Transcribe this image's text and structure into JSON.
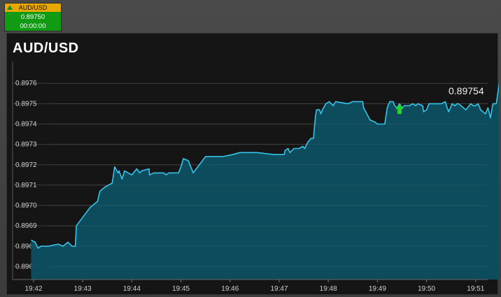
{
  "ticker": {
    "symbol": "AUD/USD",
    "price": "0.89750",
    "timer": "00:00:00",
    "direction_icon": "triangle-up-icon",
    "colors": {
      "header": "#e8a800",
      "body": "#129a12"
    }
  },
  "panel": {
    "title": "AUD/USD"
  },
  "chart_data": {
    "type": "area",
    "title": "AUD/USD",
    "xlabel": "",
    "ylabel": "",
    "x_ticks": [
      "19:42",
      "19:43",
      "19:44",
      "19:45",
      "19:46",
      "19:47",
      "19:48",
      "19:49",
      "19:50",
      "19:51"
    ],
    "y_ticks": [
      "0.8967",
      "0.8968",
      "0.8969",
      "0.8970",
      "0.8971",
      "0.8972",
      "0.8973",
      "0.8974",
      "0.8975",
      "0.8976"
    ],
    "xlim": [
      0,
      9.55
    ],
    "ylim": [
      0.89665,
      0.89769
    ],
    "grid": true,
    "last_value": "0.89754",
    "marker": {
      "type": "up-arrow",
      "x": 7.45,
      "y": 0.89747,
      "color": "#2bd12b"
    },
    "colors": {
      "line": "#35c4ea",
      "fill": "#0d4f61"
    },
    "series": [
      {
        "points": [
          [
            -0.05,
            0.89683
          ],
          [
            0.03,
            0.89682
          ],
          [
            0.09,
            0.89679
          ],
          [
            0.15,
            0.8968
          ],
          [
            0.3,
            0.8968
          ],
          [
            0.5,
            0.89681
          ],
          [
            0.6,
            0.8968
          ],
          [
            0.7,
            0.89682
          ],
          [
            0.78,
            0.8968
          ],
          [
            0.85,
            0.8968
          ],
          [
            0.87,
            0.8969
          ],
          [
            1.15,
            0.89699
          ],
          [
            1.3,
            0.89702
          ],
          [
            1.35,
            0.89707
          ],
          [
            1.45,
            0.89709
          ],
          [
            1.6,
            0.89711
          ],
          [
            1.62,
            0.89714
          ],
          [
            1.65,
            0.89719
          ],
          [
            1.72,
            0.89716
          ],
          [
            1.74,
            0.89717
          ],
          [
            1.8,
            0.89713
          ],
          [
            1.85,
            0.89717
          ],
          [
            2.0,
            0.89715
          ],
          [
            2.1,
            0.89718
          ],
          [
            2.16,
            0.89716
          ],
          [
            2.2,
            0.89717
          ],
          [
            2.35,
            0.89718
          ],
          [
            2.36,
            0.89715
          ],
          [
            2.45,
            0.89716
          ],
          [
            2.5,
            0.89716
          ],
          [
            2.55,
            0.89716
          ],
          [
            2.6,
            0.89716
          ],
          [
            2.65,
            0.89716
          ],
          [
            2.7,
            0.89715
          ],
          [
            2.75,
            0.89716
          ],
          [
            2.8,
            0.89716
          ],
          [
            2.85,
            0.89716
          ],
          [
            2.9,
            0.89716
          ],
          [
            2.95,
            0.89716
          ],
          [
            3.0,
            0.89719
          ],
          [
            3.05,
            0.89723
          ],
          [
            3.15,
            0.89722
          ],
          [
            3.2,
            0.89719
          ],
          [
            3.25,
            0.89716
          ],
          [
            3.5,
            0.89724
          ],
          [
            3.75,
            0.89724
          ],
          [
            3.85,
            0.89724
          ],
          [
            4.05,
            0.89725
          ],
          [
            4.2,
            0.89726
          ],
          [
            4.55,
            0.89726
          ],
          [
            4.9,
            0.89725
          ],
          [
            5.1,
            0.89725
          ],
          [
            5.12,
            0.89727
          ],
          [
            5.18,
            0.89728
          ],
          [
            5.22,
            0.89726
          ],
          [
            5.3,
            0.89728
          ],
          [
            5.4,
            0.89728
          ],
          [
            5.48,
            0.89729
          ],
          [
            5.52,
            0.89728
          ],
          [
            5.58,
            0.89731
          ],
          [
            5.65,
            0.89733
          ],
          [
            5.7,
            0.89733
          ],
          [
            5.72,
            0.89739
          ],
          [
            5.74,
            0.89744
          ],
          [
            5.76,
            0.89747
          ],
          [
            5.82,
            0.89747
          ],
          [
            5.85,
            0.89745
          ],
          [
            5.88,
            0.89747
          ],
          [
            5.95,
            0.8975
          ],
          [
            6.02,
            0.89751
          ],
          [
            6.1,
            0.89749
          ],
          [
            6.15,
            0.89751
          ],
          [
            6.4,
            0.8975
          ],
          [
            6.5,
            0.89751
          ],
          [
            6.58,
            0.89751
          ],
          [
            6.7,
            0.89751
          ],
          [
            6.72,
            0.89748
          ],
          [
            6.85,
            0.89742
          ],
          [
            6.95,
            0.89741
          ],
          [
            7.0,
            0.8974
          ],
          [
            7.15,
            0.8974
          ],
          [
            7.2,
            0.89748
          ],
          [
            7.25,
            0.89751
          ],
          [
            7.32,
            0.89751
          ],
          [
            7.35,
            0.89749
          ],
          [
            7.4,
            0.89748
          ],
          [
            7.45,
            0.8975
          ],
          [
            7.5,
            0.89748
          ],
          [
            7.55,
            0.89749
          ],
          [
            7.65,
            0.89749
          ],
          [
            7.72,
            0.8975
          ],
          [
            7.78,
            0.89749
          ],
          [
            7.82,
            0.8975
          ],
          [
            7.92,
            0.89749
          ],
          [
            7.94,
            0.89746
          ],
          [
            8.0,
            0.89747
          ],
          [
            8.05,
            0.8975
          ],
          [
            8.15,
            0.8975
          ],
          [
            8.3,
            0.8975
          ],
          [
            8.38,
            0.89751
          ],
          [
            8.42,
            0.89748
          ],
          [
            8.45,
            0.89746
          ],
          [
            8.52,
            0.8975
          ],
          [
            8.58,
            0.89749
          ],
          [
            8.62,
            0.8975
          ],
          [
            8.65,
            0.8975
          ],
          [
            8.8,
            0.89747
          ],
          [
            8.9,
            0.8975
          ],
          [
            8.95,
            0.89749
          ],
          [
            9.0,
            0.89749
          ],
          [
            9.05,
            0.8975
          ],
          [
            9.1,
            0.89747
          ],
          [
            9.2,
            0.89745
          ],
          [
            9.25,
            0.89748
          ],
          [
            9.3,
            0.89743
          ],
          [
            9.35,
            0.8975
          ],
          [
            9.42,
            0.8975
          ],
          [
            9.45,
            0.89755
          ],
          [
            9.5,
            0.89763
          ],
          [
            9.55,
            0.89764
          ],
          [
            9.58,
            0.89755
          ],
          [
            9.64,
            0.89751
          ],
          [
            9.72,
            0.89747
          ],
          [
            9.78,
            0.89752
          ],
          [
            9.85,
            0.89755
          ],
          [
            9.9,
            0.89754
          ]
        ]
      }
    ]
  }
}
